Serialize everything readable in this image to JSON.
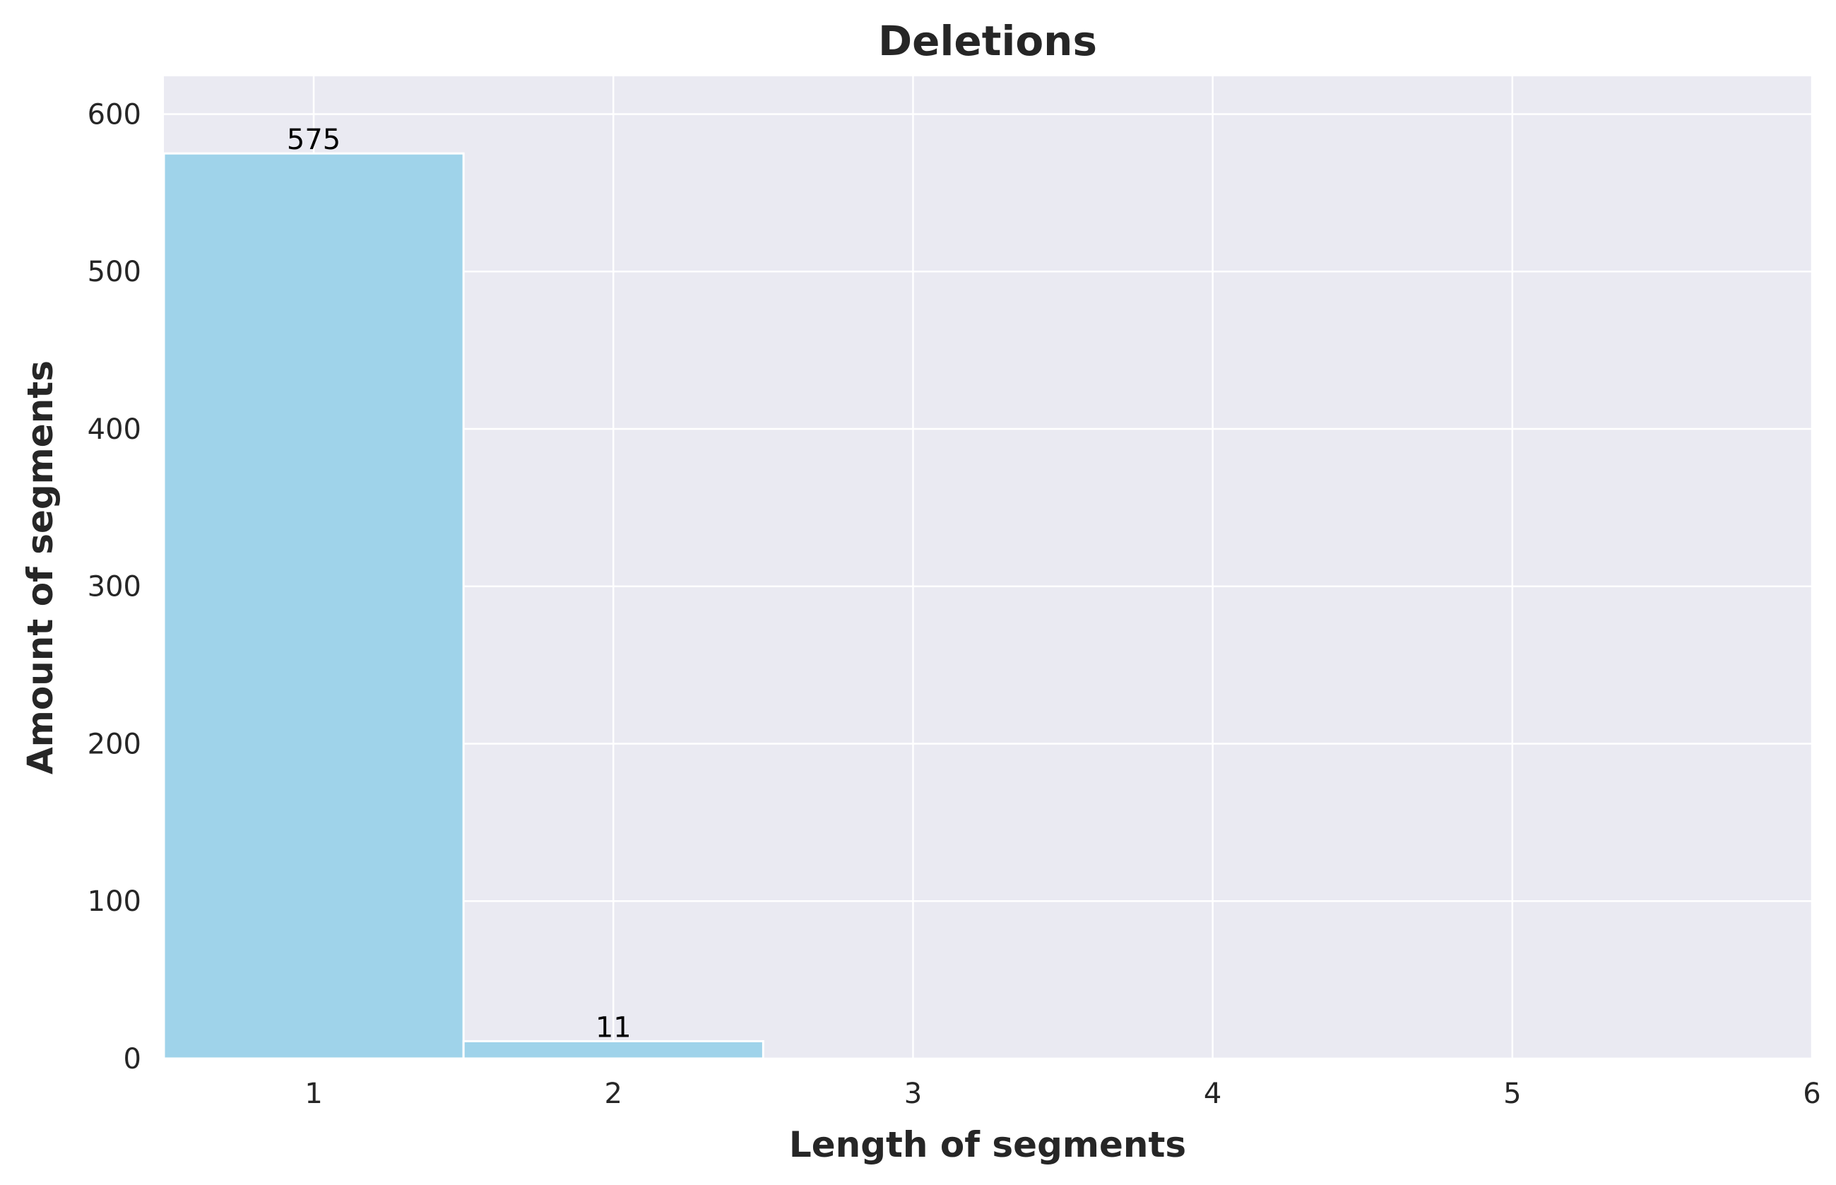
{
  "chart_data": {
    "type": "bar",
    "title": "Deletions",
    "xlabel": "Length of segments",
    "ylabel": "Amount of segments",
    "categories": [
      1,
      2
    ],
    "values": [
      575,
      11
    ],
    "bar_labels": [
      "575",
      "11"
    ],
    "xlim": [
      0.5,
      6
    ],
    "ylim": [
      0,
      600
    ],
    "x_ticks": [
      1,
      2,
      3,
      4,
      5,
      6
    ],
    "y_ticks": [
      0,
      100,
      200,
      300,
      400,
      500,
      600
    ],
    "grid": true,
    "legend": "none",
    "bar_color": "#9fd3ea",
    "plot_background": "#eaeaf2"
  }
}
